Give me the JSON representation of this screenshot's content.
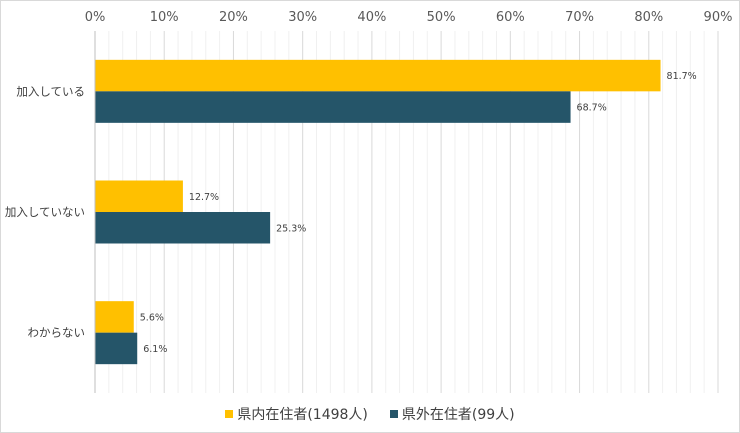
{
  "chart_data": {
    "type": "bar",
    "orientation": "horizontal",
    "categories": [
      "加入している",
      "加入していない",
      "わからない"
    ],
    "series": [
      {
        "name": "県内在住者(1498人)",
        "color": "#FFC000",
        "values": [
          81.7,
          12.7,
          5.6
        ],
        "labels": [
          "81.7%",
          "12.7%",
          "5.6%"
        ]
      },
      {
        "name": "県外在住者(99人)",
        "color": "#255569",
        "values": [
          68.7,
          25.3,
          6.1
        ],
        "labels": [
          "68.7%",
          "25.3%",
          "6.1%"
        ]
      }
    ],
    "x_ticks": [
      "0%",
      "10%",
      "20%",
      "30%",
      "40%",
      "50%",
      "60%",
      "70%",
      "80%",
      "90%"
    ],
    "xlim": [
      0,
      90
    ],
    "x_axis_position": "top",
    "grid": true,
    "legend_position": "bottom",
    "title": "",
    "xlabel": "",
    "ylabel": ""
  }
}
